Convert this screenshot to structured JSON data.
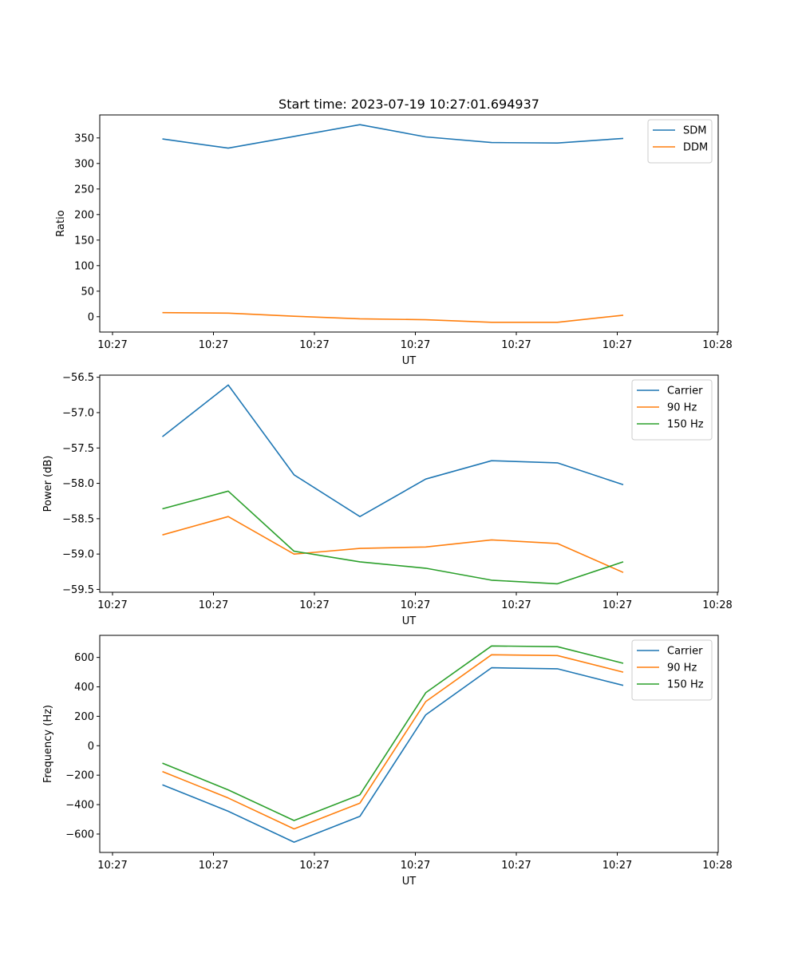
{
  "chart_data": [
    {
      "type": "line",
      "title": "Start time: 2023-07-19 10:27:01.694937",
      "xlabel": "UT",
      "ylabel": "Ratio",
      "x_ticks": [
        "10:27",
        "10:27",
        "10:27",
        "10:27",
        "10:27",
        "10:27",
        "10:27"
      ],
      "x_ticks_end": "10:28",
      "ylim": [
        -30,
        395
      ],
      "y_ticks": [
        0,
        50,
        100,
        150,
        200,
        250,
        300,
        350
      ],
      "y_tick_labels": [
        "0",
        "50",
        "100",
        "150",
        "200",
        "250",
        "300",
        "350"
      ],
      "legend_position": "top-right",
      "series": [
        {
          "name": "SDM",
          "color": "#1f77b4",
          "values": [
            348,
            330,
            353,
            376,
            352,
            341,
            340,
            349
          ]
        },
        {
          "name": "DDM",
          "color": "#ff7f0e",
          "values": [
            8,
            7,
            1,
            -4,
            -6,
            -11,
            -11,
            3
          ]
        }
      ]
    },
    {
      "type": "line",
      "title": "",
      "xlabel": "UT",
      "ylabel": "Power (dB)",
      "x_ticks": [
        "10:27",
        "10:27",
        "10:27",
        "10:27",
        "10:27",
        "10:27",
        "10:27"
      ],
      "x_ticks_end": "10:28",
      "ylim": [
        -59.54,
        -56.47
      ],
      "y_ticks": [
        -56.5,
        -57.0,
        -57.5,
        -58.0,
        -58.5,
        -59.0,
        -59.5
      ],
      "y_tick_labels": [
        "−56.5",
        "−57.0",
        "−57.5",
        "−58.0",
        "−58.5",
        "−59.0",
        "−59.5"
      ],
      "legend_position": "top-right",
      "series": [
        {
          "name": "Carrier",
          "color": "#1f77b4",
          "values": [
            -57.34,
            -56.61,
            -57.88,
            -58.47,
            -57.94,
            -57.68,
            -57.71,
            -58.02
          ]
        },
        {
          "name": "90 Hz",
          "color": "#ff7f0e",
          "values": [
            -58.73,
            -58.47,
            -59.0,
            -58.92,
            -58.9,
            -58.8,
            -58.85,
            -59.26
          ]
        },
        {
          "name": "150 Hz",
          "color": "#2ca02c",
          "values": [
            -58.36,
            -58.11,
            -58.96,
            -59.11,
            -59.2,
            -59.37,
            -59.42,
            -59.11
          ]
        }
      ]
    },
    {
      "type": "line",
      "title": "",
      "xlabel": "UT",
      "ylabel": "Frequency (Hz)",
      "x_ticks": [
        "10:27",
        "10:27",
        "10:27",
        "10:27",
        "10:27",
        "10:27",
        "10:27"
      ],
      "x_ticks_end": "10:28",
      "ylim": [
        -725,
        750
      ],
      "y_ticks": [
        600,
        400,
        200,
        0,
        -200,
        -400,
        -600
      ],
      "y_tick_labels": [
        "600",
        "400",
        "200",
        "0",
        "−200",
        "−400",
        "−600"
      ],
      "legend_position": "top-right",
      "series": [
        {
          "name": "Carrier",
          "color": "#1f77b4",
          "values": [
            -265,
            -445,
            -655,
            -480,
            210,
            530,
            523,
            410
          ]
        },
        {
          "name": "90 Hz",
          "color": "#ff7f0e",
          "values": [
            -175,
            -355,
            -565,
            -390,
            300,
            618,
            613,
            500
          ]
        },
        {
          "name": "150 Hz",
          "color": "#2ca02c",
          "values": [
            -118,
            -300,
            -508,
            -333,
            360,
            678,
            673,
            560
          ]
        }
      ]
    }
  ]
}
